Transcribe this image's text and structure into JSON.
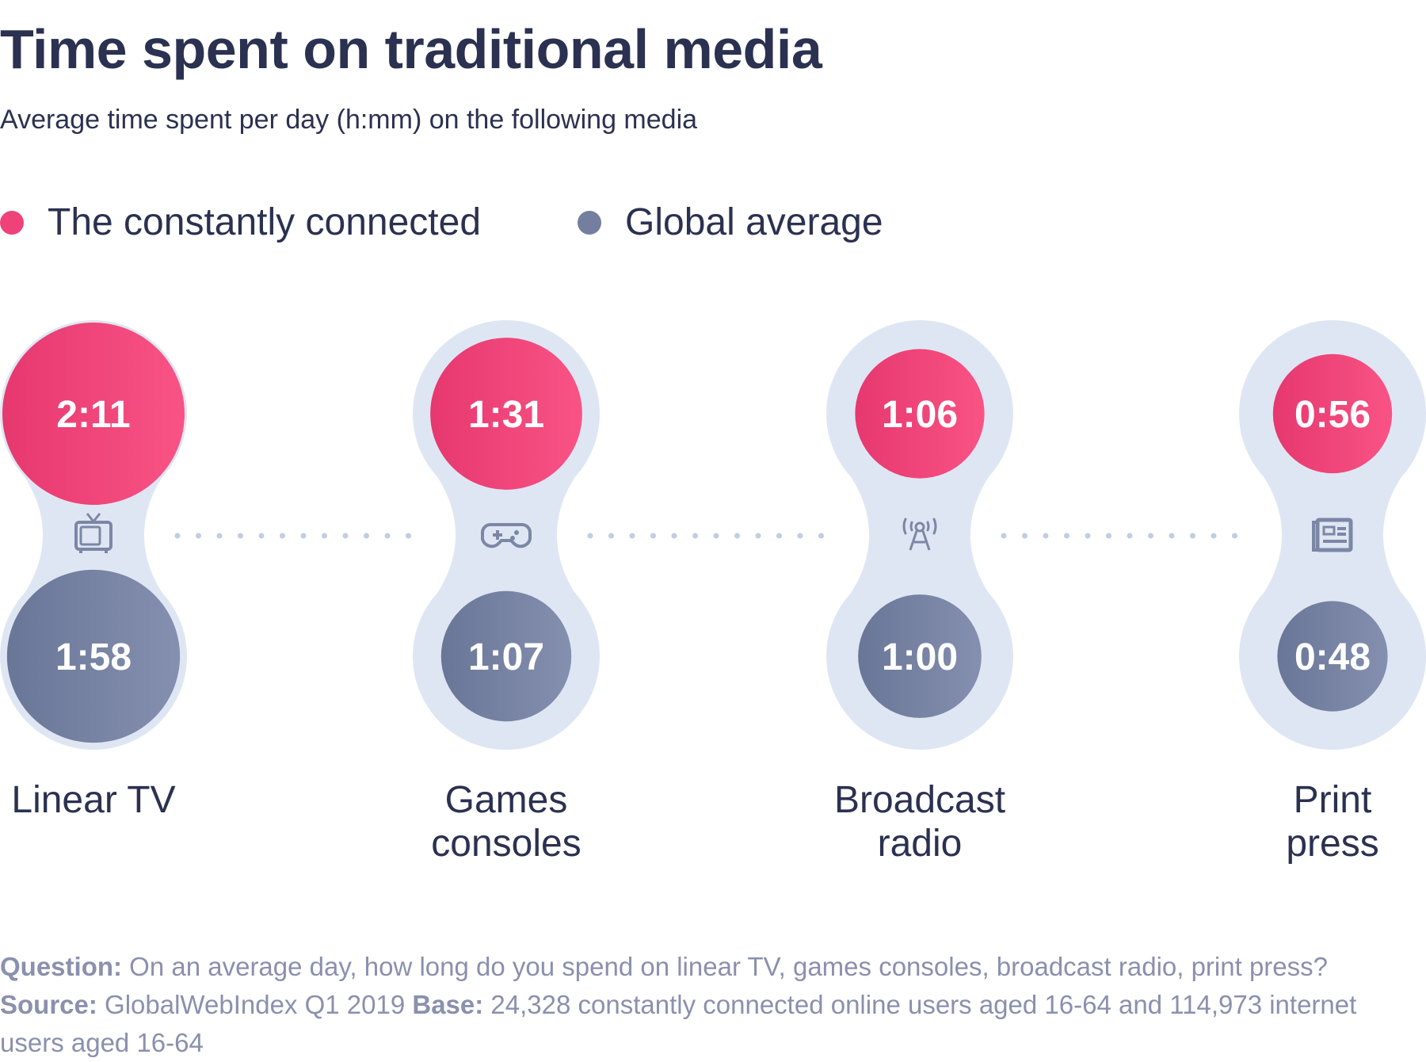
{
  "chart_data": {
    "type": "bubble-pairs",
    "title": "Time spent on traditional media",
    "subtitle": "Average time spent per day (h:mm) on the following media",
    "legend": [
      {
        "name": "The constantly connected",
        "color": "#ef4278"
      },
      {
        "name": "Global average",
        "color": "#747fa0"
      }
    ],
    "legend_placement": "top-left",
    "categories": [
      {
        "label_lines": [
          "Linear TV"
        ],
        "icon": "tv-icon"
      },
      {
        "label_lines": [
          "Games",
          "consoles"
        ],
        "icon": "gamepad-icon"
      },
      {
        "label_lines": [
          "Broadcast",
          "radio"
        ],
        "icon": "radio-tower-icon"
      },
      {
        "label_lines": [
          "Print",
          "press"
        ],
        "icon": "newspaper-icon"
      }
    ],
    "series": [
      {
        "name": "The constantly connected",
        "values": [
          "2:11",
          "1:31",
          "1:06",
          "0:56"
        ],
        "minutes": [
          131,
          91,
          66,
          56
        ]
      },
      {
        "name": "Global average",
        "values": [
          "1:58",
          "1:07",
          "1:00",
          "0:48"
        ],
        "minutes": [
          118,
          67,
          60,
          48
        ]
      }
    ],
    "colors": {
      "capsule": "#dfe6f3",
      "connector_dots": "#c2cde0",
      "icon": "#7c87a6",
      "pink_start": "#e6386f",
      "pink_end": "#f95385",
      "gray_start": "#6a7697",
      "gray_end": "#8590b0"
    }
  },
  "footer": {
    "question_label": "Question:",
    "question_text": " On an average day, how long do you spend on linear TV, games consoles, broadcast radio, print press? ",
    "source_label": "Source:",
    "source_text": " GlobalWebIndex Q1 2019 ",
    "base_label": "Base:",
    "base_text": " 24,328 constantly connected online users aged 16-64 and 114,973 internet users aged 16-64"
  }
}
